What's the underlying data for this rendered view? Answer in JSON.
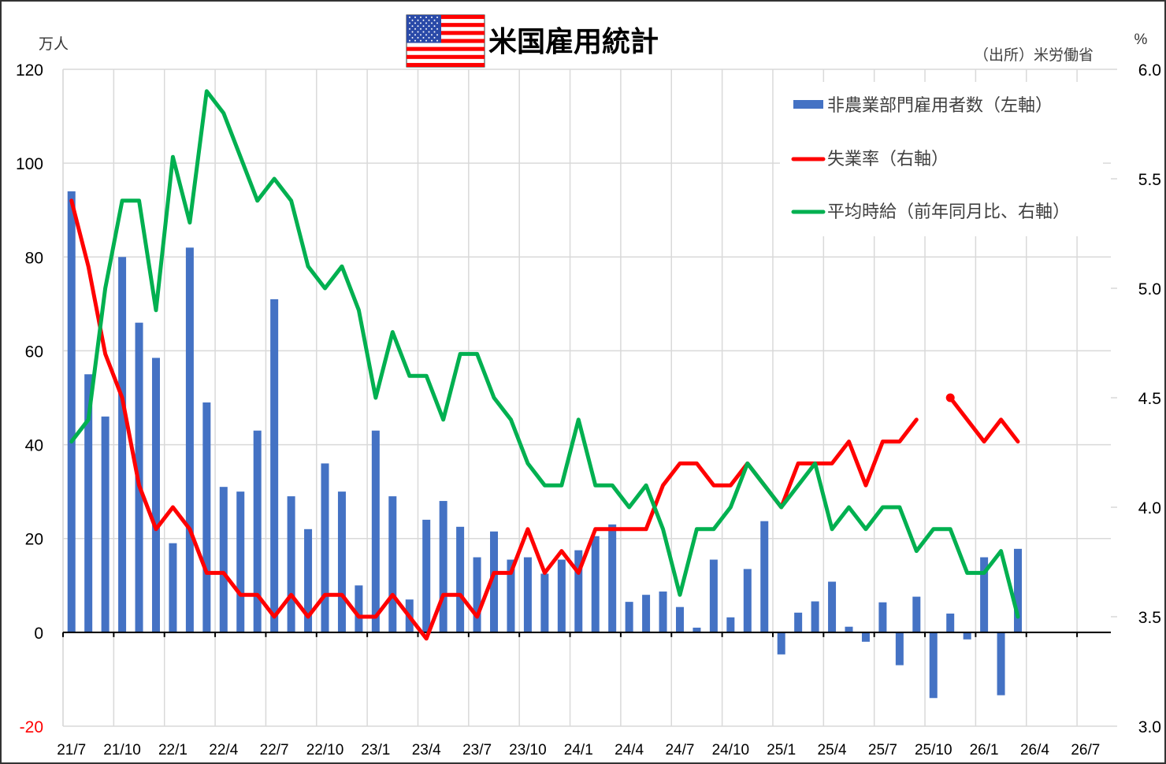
{
  "chart_data": {
    "type": "bar+line",
    "title": "米国雇用統計",
    "source": "（出所）米労働省",
    "left_axis": {
      "unit": "万人",
      "ylim": [
        -20,
        120
      ],
      "ticks": [
        "-20",
        "0",
        "20",
        "40",
        "60",
        "80",
        "100",
        "120"
      ],
      "negative_tick_color": "#ff0000"
    },
    "right_axis": {
      "unit": "%",
      "ylim": [
        3.0,
        6.0
      ],
      "ticks": [
        "3.0",
        "3.5",
        "4.0",
        "4.5",
        "5.0",
        "5.5",
        "6.0"
      ]
    },
    "x_tick_labels": [
      "21/7",
      "21/10",
      "22/1",
      "22/4",
      "22/7",
      "22/10",
      "23/1",
      "23/4",
      "23/7",
      "23/10",
      "24/1",
      "24/4",
      "24/7",
      "24/10",
      "25/1",
      "25/4",
      "25/7",
      "25/10",
      "26/1",
      "26/4",
      "26/7"
    ],
    "x_range": [
      "21/7",
      "26/8"
    ],
    "grid": true,
    "legend_placement": "top-right",
    "series": [
      {
        "name": "非農業部門雇用者数（左軸）",
        "type": "bar",
        "axis": "left",
        "color": "#4472c4",
        "values": [
          94,
          55,
          46,
          80,
          66,
          58.5,
          19,
          82,
          49,
          31,
          30,
          43,
          71,
          29,
          22,
          36,
          30,
          10,
          43,
          29,
          7,
          24,
          28,
          22.5,
          16,
          21.5,
          15.5,
          16,
          12.5,
          15.5,
          17.5,
          20.5,
          23,
          6.5,
          8,
          8.7,
          5.4,
          1,
          15.5,
          3.2,
          13.5,
          23.7,
          -4.7,
          4.2,
          6.6,
          10.8,
          1.2,
          -2,
          6.4,
          -7,
          7.6,
          -14,
          4,
          -1.5,
          16,
          -13.4,
          17.8
        ]
      },
      {
        "name": "失業率（右軸）",
        "type": "line",
        "axis": "right",
        "color": "#ff0000",
        "values": [
          5.4,
          5.1,
          4.7,
          4.5,
          4.1,
          3.9,
          4.0,
          3.9,
          3.7,
          3.7,
          3.6,
          3.6,
          3.5,
          3.6,
          3.5,
          3.6,
          3.6,
          3.5,
          3.5,
          3.6,
          3.5,
          3.4,
          3.6,
          3.6,
          3.5,
          3.7,
          3.7,
          3.9,
          3.7,
          3.8,
          3.7,
          3.9,
          3.9,
          3.9,
          3.9,
          4.1,
          4.2,
          4.2,
          4.1,
          4.1,
          4.2,
          4.1,
          4.0,
          4.2,
          4.2,
          4.2,
          4.3,
          4.1,
          4.3,
          4.3,
          4.4,
          null,
          4.5,
          4.4,
          4.3,
          4.4,
          4.3
        ]
      },
      {
        "name": "平均時給（前年同月比、右軸）",
        "type": "line",
        "axis": "right",
        "color": "#00b050",
        "values": [
          4.3,
          4.4,
          5.0,
          5.4,
          5.4,
          4.9,
          5.6,
          5.3,
          5.9,
          5.8,
          5.6,
          5.4,
          5.5,
          5.4,
          5.1,
          5.0,
          5.1,
          4.9,
          4.5,
          4.8,
          4.6,
          4.6,
          4.4,
          4.7,
          4.7,
          4.5,
          4.4,
          4.2,
          4.1,
          4.1,
          4.4,
          4.1,
          4.1,
          4.0,
          4.1,
          3.9,
          3.6,
          3.9,
          3.9,
          4.0,
          4.2,
          4.1,
          4.0,
          4.1,
          4.2,
          3.9,
          4.0,
          3.9,
          4.0,
          4.0,
          3.8,
          3.9,
          3.9,
          3.7,
          3.7,
          3.8,
          3.5
        ]
      }
    ]
  }
}
